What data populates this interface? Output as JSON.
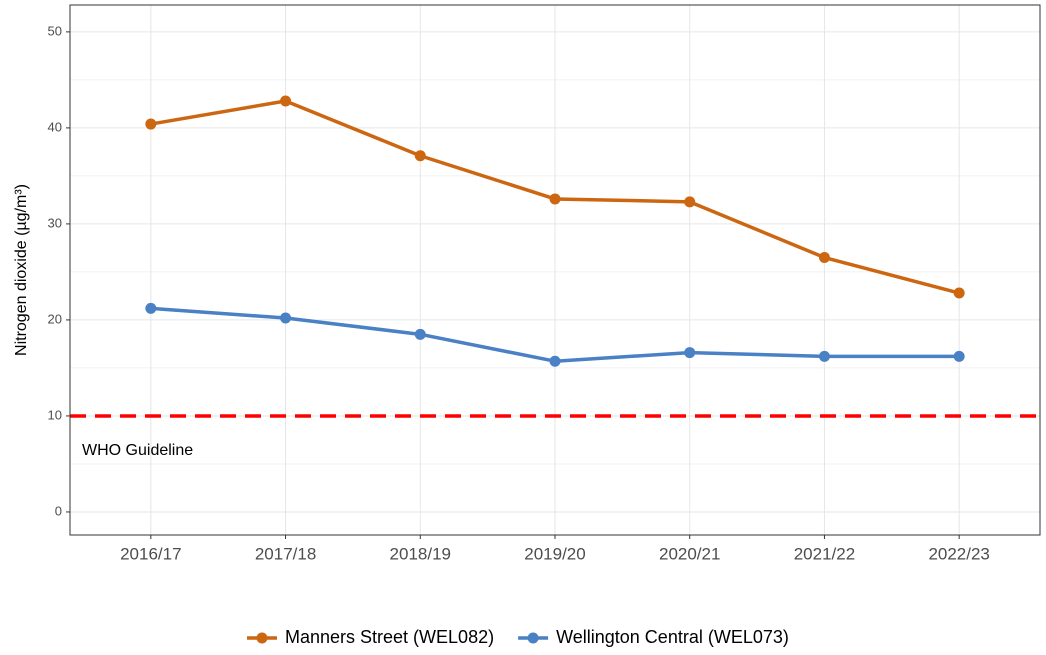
{
  "chart_data": {
    "type": "line",
    "ylabel": "Nitrogen dioxide (µg/m³)",
    "categories": [
      "2016/17",
      "2017/18",
      "2018/19",
      "2019/20",
      "2020/21",
      "2021/22",
      "2022/23"
    ],
    "series": [
      {
        "name": "Manners Street (WEL082)",
        "color": "#cc6611",
        "values": [
          40.4,
          42.8,
          37.1,
          32.6,
          32.3,
          26.5,
          22.8
        ]
      },
      {
        "name": "Wellington Central (WEL073)",
        "color": "#4a80c4",
        "values": [
          21.2,
          20.2,
          18.5,
          15.7,
          16.6,
          16.2,
          16.2
        ]
      }
    ],
    "ylim": [
      -2.4,
      52.8
    ],
    "yticks": [
      0,
      10,
      20,
      30,
      40,
      50
    ],
    "yminor": [
      5,
      15,
      25,
      35,
      45
    ],
    "grid": true,
    "reference_line": {
      "value": 10,
      "label": "WHO Guideline",
      "color": "#ff0000"
    },
    "legend": "bottom"
  }
}
